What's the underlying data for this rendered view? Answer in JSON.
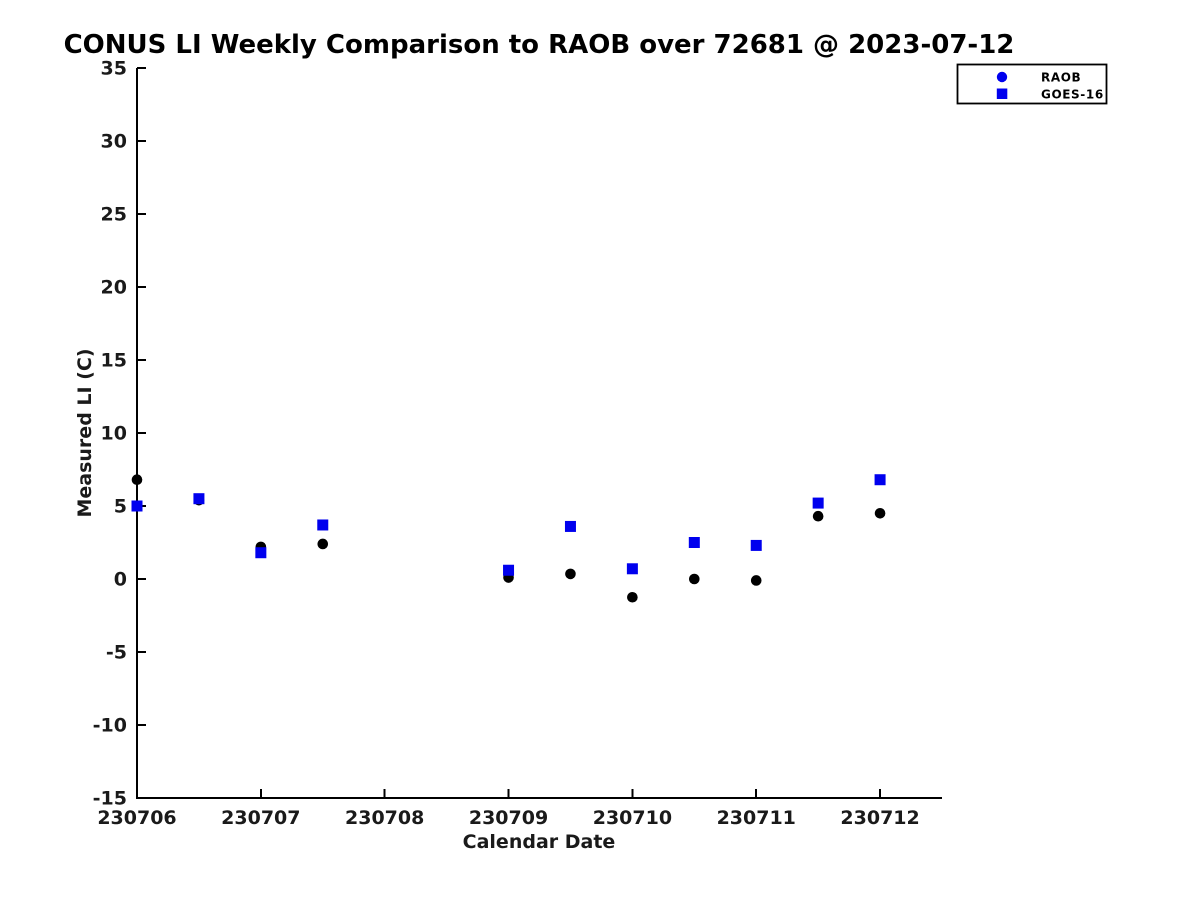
{
  "page": {
    "background_color": "#ffffff"
  },
  "chart_data": {
    "type": "scatter",
    "title": "CONUS LI Weekly Comparison to RAOB over 72681 @ 2023-07-12",
    "xlabel": "Calendar Date",
    "ylabel": "Measured LI (C)",
    "grid": false,
    "x_unit": "days since 230706 (0.5 = half-day observation)",
    "xlim": [
      0,
      6.5
    ],
    "ylim": [
      -15,
      35
    ],
    "x_ticks": [
      {
        "value": 0,
        "label": "230706"
      },
      {
        "value": 1,
        "label": "230707"
      },
      {
        "value": 2,
        "label": "230708"
      },
      {
        "value": 3,
        "label": "230709"
      },
      {
        "value": 4,
        "label": "230710"
      },
      {
        "value": 5,
        "label": "230711"
      },
      {
        "value": 6,
        "label": "230712"
      }
    ],
    "y_ticks": [
      35,
      30,
      25,
      20,
      15,
      10,
      5,
      0,
      -5,
      -10,
      -15
    ],
    "axis_color": "#000000",
    "tick_label_color": "#1a1a1a",
    "legend": {
      "position": "upper right",
      "entries": [
        {
          "label": "RAOB",
          "marker": "circle",
          "color": "#0000ee"
        },
        {
          "label": "GOES-16",
          "marker": "square",
          "color": "#0000ee"
        }
      ]
    },
    "series": [
      {
        "name": "RAOB",
        "marker": "circle",
        "color": "#000000",
        "x": [
          0,
          0.5,
          1,
          1.5,
          3,
          3.5,
          4,
          4.5,
          5,
          5.5,
          6
        ],
        "y": [
          6.8,
          5.4,
          2.2,
          2.4,
          0.1,
          0.35,
          -1.25,
          0.0,
          -0.1,
          4.3,
          4.5
        ]
      },
      {
        "name": "GOES-16",
        "marker": "square",
        "color": "#0000ee",
        "x": [
          0,
          0.5,
          1,
          1.5,
          3,
          3.5,
          4,
          4.5,
          5,
          5.5,
          6
        ],
        "y": [
          5.0,
          5.5,
          1.8,
          3.7,
          0.6,
          3.6,
          0.7,
          2.5,
          2.3,
          5.2,
          6.8
        ]
      }
    ]
  }
}
